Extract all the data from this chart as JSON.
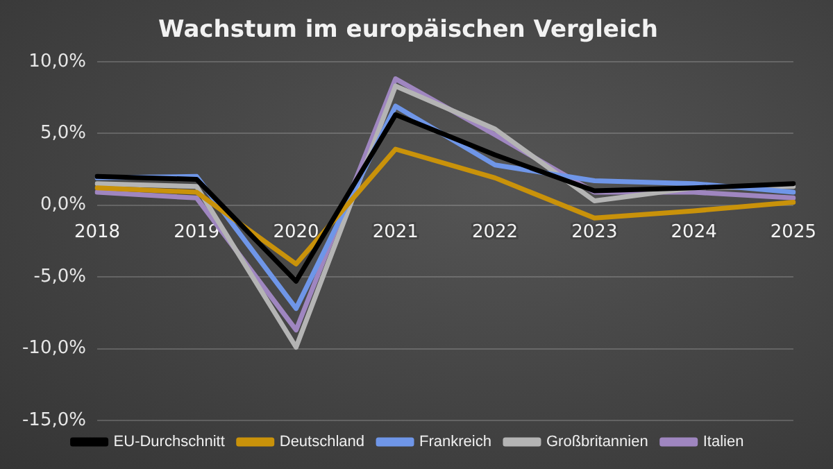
{
  "chart_data": {
    "type": "line",
    "title": "Wachstum im europäischen Vergleich",
    "categories": [
      "2018",
      "2019",
      "2020",
      "2021",
      "2022",
      "2023",
      "2024",
      "2025"
    ],
    "series": [
      {
        "name": "EU-Durchschnitt",
        "color": "#000000",
        "values": [
          2.0,
          1.8,
          -5.3,
          6.3,
          3.5,
          1.0,
          1.2,
          1.5
        ]
      },
      {
        "name": "Deutschland",
        "color": "#c9920a",
        "values": [
          1.2,
          0.9,
          -4.1,
          3.9,
          1.9,
          -0.9,
          -0.4,
          0.2
        ]
      },
      {
        "name": "Frankreich",
        "color": "#6f96e8",
        "values": [
          1.9,
          2.0,
          -7.2,
          6.9,
          2.8,
          1.7,
          1.5,
          0.9
        ]
      },
      {
        "name": "Großbritannien",
        "color": "#b4b4b4",
        "values": [
          1.5,
          1.3,
          -9.9,
          8.3,
          5.3,
          0.3,
          1.2,
          1.3
        ]
      },
      {
        "name": "Italien",
        "color": "#9f86c0",
        "values": [
          0.9,
          0.5,
          -8.7,
          8.8,
          4.9,
          0.9,
          0.9,
          0.5
        ]
      }
    ],
    "ylim": [
      -15,
      10
    ],
    "yticks": [
      {
        "value": -15,
        "label": "-15,0%"
      },
      {
        "value": -10,
        "label": "-10,0%"
      },
      {
        "value": -5,
        "label": "-5,0%"
      },
      {
        "value": 0,
        "label": "0,0%"
      },
      {
        "value": 5,
        "label": "5,0%"
      },
      {
        "value": 10,
        "label": "10,0%"
      }
    ],
    "grid": "y",
    "legend": "bottom",
    "marker": "none",
    "line_style": "solid"
  }
}
